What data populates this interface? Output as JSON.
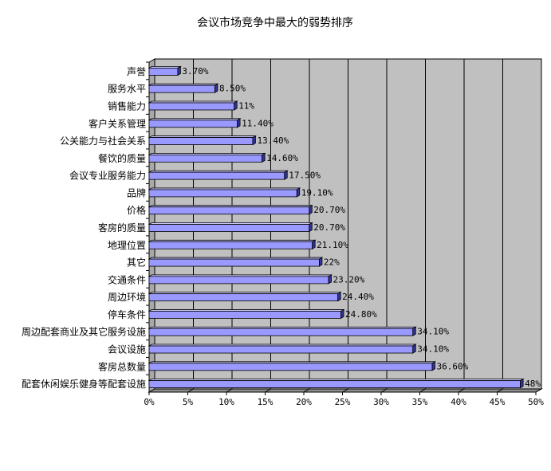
{
  "chart_data": {
    "type": "bar",
    "orientation": "horizontal",
    "title": "会议市场竞争中最大的弱势排序",
    "xlim": [
      0,
      50
    ],
    "grid": true,
    "legend": "none",
    "x_ticks": [
      "0%",
      "5%",
      "10%",
      "15%",
      "20%",
      "25%",
      "30%",
      "35%",
      "40%",
      "45%",
      "50%"
    ],
    "categories": [
      "声誉",
      "服务水平",
      "销售能力",
      "客户关系管理",
      "公关能力与社会关系",
      "餐饮的质量",
      "会议专业服务能力",
      "品牌",
      "价格",
      "客房的质量",
      "地理位置",
      "其它",
      "交通条件",
      "周边环境",
      "停车条件",
      "周边配套商业及其它服务设施",
      "会议设施",
      "客房总数量",
      "配套休闲娱乐健身等配套设施"
    ],
    "values": [
      3.7,
      8.5,
      11,
      11.4,
      13.4,
      14.6,
      17.5,
      19.1,
      20.7,
      20.7,
      21.1,
      22,
      23.2,
      24.4,
      24.8,
      34.1,
      34.1,
      36.6,
      48
    ],
    "value_labels": [
      "3.70%",
      "8.50%",
      "11%",
      "11.40%",
      "13.40%",
      "14.60%",
      "17.50%",
      "19.10%",
      "20.70%",
      "20.70%",
      "21.10%",
      "22%",
      "23.20%",
      "24.40%",
      "24.80%",
      "34.10%",
      "34.10%",
      "36.60%",
      "48%"
    ],
    "colors": {
      "plot_bg": "#c0c0c0",
      "bar_front": "#9999ff",
      "bar_side": "#333399",
      "bar_top": "#ccccff",
      "grid": "#000000"
    }
  }
}
